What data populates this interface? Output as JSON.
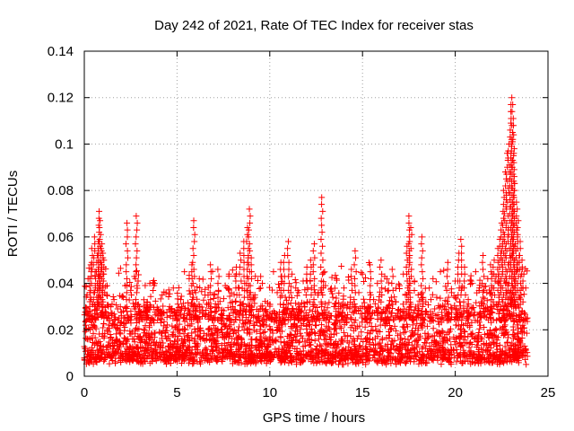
{
  "chart_data": {
    "type": "scatter",
    "title": "Day 242 of 2021, Rate Of TEC Index for receiver stas",
    "xlabel": "GPS time / hours",
    "ylabel": "ROTI / TECUs",
    "xlim": [
      0,
      25
    ],
    "ylim": [
      0,
      0.14
    ],
    "x_ticks": [
      0,
      5,
      10,
      15,
      20,
      25
    ],
    "y_ticks": [
      0,
      0.02,
      0.04,
      0.06,
      0.08,
      0.1,
      0.12,
      0.14
    ],
    "x_tick_labels": [
      "0",
      "5",
      "10",
      "15",
      "20",
      "25"
    ],
    "y_tick_labels": [
      "0",
      "0.02",
      "0.04",
      "0.06",
      "0.08",
      "0.1",
      "0.12",
      "0.14"
    ],
    "grid": true,
    "marker": "+",
    "series": [
      {
        "name": "ROTI",
        "color": "#ff0000",
        "points": [
          [
            0.05,
            0.012
          ],
          [
            0.1,
            0.02
          ],
          [
            0.15,
            0.035
          ],
          [
            0.2,
            0.042
          ],
          [
            0.25,
            0.028
          ],
          [
            0.3,
            0.016
          ],
          [
            0.35,
            0.048
          ],
          [
            0.4,
            0.055
          ],
          [
            0.45,
            0.031
          ],
          [
            0.5,
            0.022
          ],
          [
            0.55,
            0.06
          ],
          [
            0.6,
            0.038
          ],
          [
            0.65,
            0.045
          ],
          [
            0.7,
            0.052
          ],
          [
            0.75,
            0.058
          ],
          [
            0.8,
            0.071
          ],
          [
            0.85,
            0.067
          ],
          [
            0.9,
            0.049
          ],
          [
            0.95,
            0.057
          ],
          [
            1.0,
            0.053
          ],
          [
            1.05,
            0.044
          ],
          [
            1.1,
            0.036
          ],
          [
            1.2,
            0.025
          ],
          [
            1.3,
            0.03
          ],
          [
            1.4,
            0.018
          ],
          [
            1.5,
            0.027
          ],
          [
            1.6,
            0.033
          ],
          [
            1.7,
            0.021
          ],
          [
            1.8,
            0.029
          ],
          [
            1.9,
            0.015
          ],
          [
            2.0,
            0.026
          ],
          [
            2.1,
            0.034
          ],
          [
            2.2,
            0.039
          ],
          [
            2.3,
            0.066
          ],
          [
            2.4,
            0.024
          ],
          [
            2.5,
            0.037
          ],
          [
            2.6,
            0.019
          ],
          [
            2.7,
            0.043
          ],
          [
            2.8,
            0.069
          ],
          [
            2.9,
            0.041
          ],
          [
            3.0,
            0.028
          ],
          [
            3.2,
            0.017
          ],
          [
            3.4,
            0.032
          ],
          [
            3.6,
            0.023
          ],
          [
            3.8,
            0.04
          ],
          [
            4.0,
            0.026
          ],
          [
            4.2,
            0.035
          ],
          [
            4.4,
            0.021
          ],
          [
            4.6,
            0.03
          ],
          [
            4.8,
            0.038
          ],
          [
            5.0,
            0.024
          ],
          [
            5.2,
            0.033
          ],
          [
            5.4,
            0.045
          ],
          [
            5.6,
            0.029
          ],
          [
            5.8,
            0.048
          ],
          [
            5.9,
            0.067
          ],
          [
            6.0,
            0.036
          ],
          [
            6.2,
            0.042
          ],
          [
            6.4,
            0.027
          ],
          [
            6.6,
            0.031
          ],
          [
            6.8,
            0.048
          ],
          [
            7.0,
            0.035
          ],
          [
            7.2,
            0.046
          ],
          [
            7.4,
            0.025
          ],
          [
            7.6,
            0.039
          ],
          [
            7.8,
            0.044
          ],
          [
            8.0,
            0.03
          ],
          [
            8.2,
            0.047
          ],
          [
            8.4,
            0.053
          ],
          [
            8.6,
            0.058
          ],
          [
            8.8,
            0.064
          ],
          [
            8.9,
            0.072
          ],
          [
            9.0,
            0.051
          ],
          [
            9.2,
            0.034
          ],
          [
            9.4,
            0.028
          ],
          [
            9.6,
            0.04
          ],
          [
            9.8,
            0.022
          ],
          [
            10.0,
            0.031
          ],
          [
            10.2,
            0.045
          ],
          [
            10.4,
            0.036
          ],
          [
            10.6,
            0.049
          ],
          [
            10.8,
            0.052
          ],
          [
            11.0,
            0.058
          ],
          [
            11.2,
            0.044
          ],
          [
            11.4,
            0.038
          ],
          [
            11.6,
            0.029
          ],
          [
            11.8,
            0.041
          ],
          [
            12.0,
            0.047
          ],
          [
            12.2,
            0.05
          ],
          [
            12.4,
            0.057
          ],
          [
            12.6,
            0.035
          ],
          [
            12.8,
            0.077
          ],
          [
            13.0,
            0.039
          ],
          [
            13.2,
            0.027
          ],
          [
            13.4,
            0.034
          ],
          [
            13.6,
            0.042
          ],
          [
            13.8,
            0.03
          ],
          [
            14.0,
            0.038
          ],
          [
            14.2,
            0.031
          ],
          [
            14.4,
            0.046
          ],
          [
            14.6,
            0.054
          ],
          [
            14.8,
            0.036
          ],
          [
            15.0,
            0.044
          ],
          [
            15.2,
            0.029
          ],
          [
            15.4,
            0.048
          ],
          [
            15.6,
            0.033
          ],
          [
            15.8,
            0.04
          ],
          [
            16.0,
            0.05
          ],
          [
            16.2,
            0.043
          ],
          [
            16.4,
            0.037
          ],
          [
            16.6,
            0.046
          ],
          [
            16.8,
            0.032
          ],
          [
            17.0,
            0.039
          ],
          [
            17.2,
            0.044
          ],
          [
            17.4,
            0.056
          ],
          [
            17.5,
            0.069
          ],
          [
            17.6,
            0.064
          ],
          [
            17.8,
            0.041
          ],
          [
            18.0,
            0.035
          ],
          [
            18.2,
            0.06
          ],
          [
            18.4,
            0.028
          ],
          [
            18.6,
            0.038
          ],
          [
            18.8,
            0.042
          ],
          [
            19.0,
            0.034
          ],
          [
            19.2,
            0.045
          ],
          [
            19.4,
            0.03
          ],
          [
            19.6,
            0.049
          ],
          [
            19.8,
            0.036
          ],
          [
            20.0,
            0.041
          ],
          [
            20.2,
            0.053
          ],
          [
            20.3,
            0.059
          ],
          [
            20.5,
            0.047
          ],
          [
            20.7,
            0.033
          ],
          [
            20.9,
            0.04
          ],
          [
            21.1,
            0.045
          ],
          [
            21.3,
            0.038
          ],
          [
            21.5,
            0.052
          ],
          [
            21.7,
            0.036
          ],
          [
            21.9,
            0.048
          ],
          [
            22.0,
            0.044
          ],
          [
            22.1,
            0.05
          ],
          [
            22.2,
            0.043
          ],
          [
            22.3,
            0.055
          ],
          [
            22.4,
            0.059
          ],
          [
            22.5,
            0.066
          ],
          [
            22.6,
            0.08
          ],
          [
            22.7,
            0.088
          ],
          [
            22.8,
            0.096
          ],
          [
            22.9,
            0.1
          ],
          [
            23.0,
            0.109
          ],
          [
            23.05,
            0.12
          ],
          [
            23.1,
            0.117
          ],
          [
            23.15,
            0.104
          ],
          [
            23.2,
            0.083
          ],
          [
            23.3,
            0.075
          ],
          [
            23.4,
            0.067
          ],
          [
            23.5,
            0.058
          ],
          [
            23.6,
            0.05
          ],
          [
            23.7,
            0.044
          ],
          [
            23.8,
            0.038
          ]
        ]
      }
    ],
    "background_band": {
      "description": "dense base of points between 0.005 and 0.025 across the full range",
      "x_range": [
        0,
        23.9
      ],
      "y_range": [
        0.005,
        0.028
      ]
    }
  }
}
